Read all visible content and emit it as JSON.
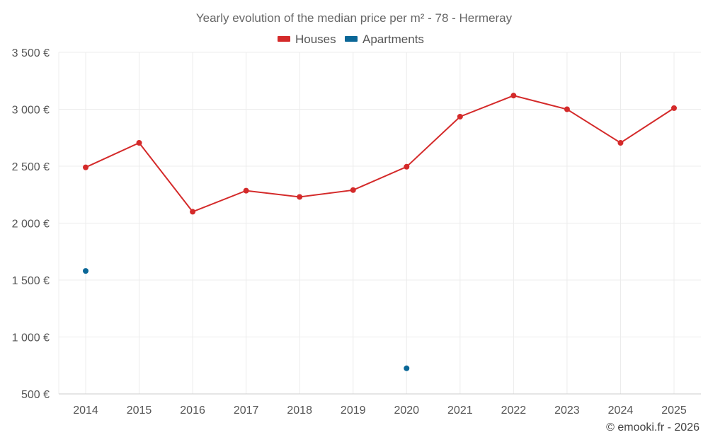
{
  "chart_data": {
    "type": "line",
    "title": "Yearly evolution of the median price per m² - 78 - Hermeray",
    "categories": [
      "2014",
      "2015",
      "2016",
      "2017",
      "2018",
      "2019",
      "2020",
      "2021",
      "2022",
      "2023",
      "2024",
      "2025"
    ],
    "ylim": [
      500,
      3500
    ],
    "yticks": [
      500,
      1000,
      1500,
      2000,
      2500,
      3000,
      3500
    ],
    "ytick_labels": [
      "500 €",
      "1 000 €",
      "1 500 €",
      "2 000 €",
      "2 500 €",
      "3 000 €",
      "3 500 €"
    ],
    "series": [
      {
        "name": "Houses",
        "color": "#d42a2a",
        "values": [
          2490,
          2705,
          2100,
          2285,
          2230,
          2290,
          2495,
          2935,
          3120,
          3000,
          2705,
          3010
        ]
      },
      {
        "name": "Apartments",
        "color": "#0b6797",
        "values": [
          1580,
          null,
          null,
          null,
          null,
          null,
          725,
          null,
          null,
          null,
          null,
          null
        ]
      }
    ],
    "grid": true,
    "legend": "top-center"
  },
  "credit": "© emooki.fr - 2026"
}
